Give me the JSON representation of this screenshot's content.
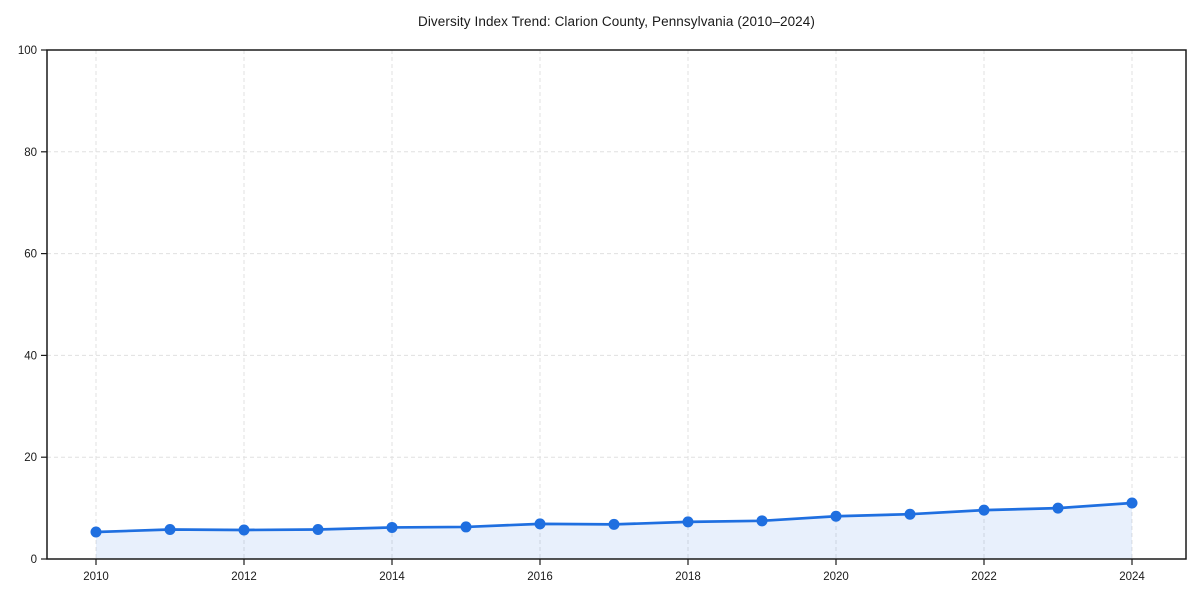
{
  "chart_data": {
    "type": "line",
    "title": "Diversity Index Trend: Clarion County, Pennsylvania (2010–2024)",
    "x": [
      2010,
      2011,
      2012,
      2013,
      2014,
      2015,
      2016,
      2017,
      2018,
      2019,
      2020,
      2021,
      2022,
      2023,
      2024
    ],
    "series": [
      {
        "name": "Diversity Index",
        "values": [
          5.3,
          5.8,
          5.7,
          5.8,
          6.2,
          6.3,
          6.9,
          6.8,
          7.3,
          7.5,
          8.4,
          8.8,
          9.6,
          10.0,
          11.0
        ]
      }
    ],
    "xlabel": "",
    "ylabel": "",
    "ylim": [
      0,
      100
    ],
    "yticks": [
      0,
      20,
      40,
      60,
      80,
      100
    ],
    "xticks": [
      2010,
      2012,
      2014,
      2016,
      2018,
      2020,
      2022,
      2024
    ],
    "grid": true,
    "grid_style": "dashed",
    "legend": false,
    "marker": "circle",
    "area_fill": true,
    "colors": {
      "line": "#1f6fe0",
      "marker": "#1f6fe0",
      "area": "#1f6fe0",
      "area_opacity": 0.1,
      "grid": "#e0e0e0",
      "spine": "#1a1a1a",
      "text": "#1a1a1a"
    }
  }
}
